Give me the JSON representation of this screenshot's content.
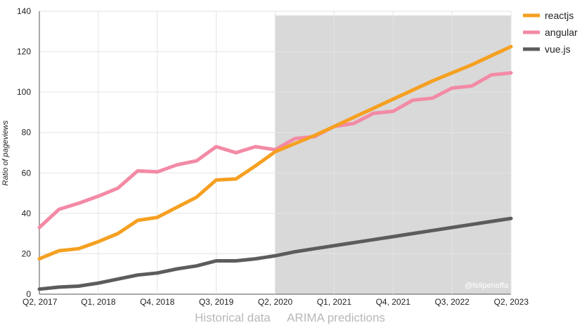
{
  "chart_data": {
    "type": "line",
    "ylabel": "Ratio of pageviews",
    "ylim": [
      0,
      140
    ],
    "y_ticks": [
      0,
      20,
      40,
      60,
      80,
      100,
      120,
      140
    ],
    "x_ticks": [
      "Q2, 2017",
      "Q1, 2018",
      "Q4, 2018",
      "Q3, 2019",
      "Q2, 2020",
      "Q1, 2021",
      "Q4, 2021",
      "Q3, 2022",
      "Q2, 2023"
    ],
    "x": [
      "Q2, 2017",
      "Q3, 2017",
      "Q4, 2017",
      "Q1, 2018",
      "Q2, 2018",
      "Q3, 2018",
      "Q4, 2018",
      "Q1, 2019",
      "Q2, 2019",
      "Q3, 2019",
      "Q4, 2019",
      "Q1, 2020",
      "Q2, 2020",
      "Q3, 2020",
      "Q4, 2020",
      "Q1, 2021",
      "Q2, 2021",
      "Q3, 2021",
      "Q4, 2021",
      "Q1, 2022",
      "Q2, 2022",
      "Q3, 2022",
      "Q4, 2022",
      "Q1, 2023",
      "Q2, 2023"
    ],
    "series": [
      {
        "name": "reactjs",
        "color": "#f5a021",
        "values": [
          17.5,
          21.5,
          22.5,
          26,
          30,
          36.5,
          38,
          43,
          48,
          56.5,
          57,
          63.5,
          70.5,
          74.5,
          78.5,
          83,
          87.5,
          92,
          96.5,
          101,
          105.5,
          109.5,
          113.5,
          118,
          122.5
        ]
      },
      {
        "name": "angular",
        "color": "#f38aa5",
        "values": [
          33,
          42,
          45,
          48.5,
          52.5,
          61,
          60.5,
          64,
          66,
          73,
          70,
          73,
          71.5,
          77,
          78,
          83,
          84.5,
          89.5,
          90.5,
          96,
          97,
          102,
          103,
          108.5,
          109.5
        ]
      },
      {
        "name": "vue.js",
        "color": "#5c5c5c",
        "values": [
          2.5,
          3.5,
          4,
          5.5,
          7.5,
          9.5,
          10.5,
          12.5,
          14,
          16.5,
          16.5,
          17.5,
          19,
          21,
          22.5,
          24,
          25.5,
          27,
          28.5,
          30,
          31.5,
          33,
          34.5,
          36,
          37.5
        ]
      }
    ],
    "shaded_region": {
      "from": "Q2, 2020",
      "to": "Q2, 2023",
      "color": "#d9d9d9"
    },
    "section_labels": {
      "historical": "Historical data",
      "predictions": "ARIMA predictions"
    },
    "watermark": "@felipehoffa",
    "legend_position": "top-right",
    "grid": true
  }
}
